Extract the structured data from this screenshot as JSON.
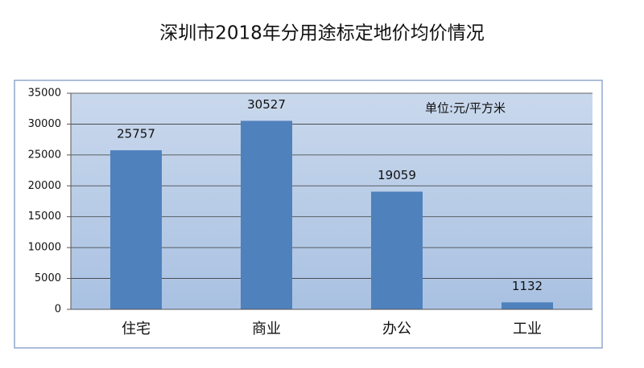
{
  "chart_data": {
    "type": "bar",
    "title": "深圳市2018年分用途标定地价均价情况",
    "annotation": "单位:元/平方米",
    "categories": [
      "住宅",
      "商业",
      "办公",
      "工业"
    ],
    "values": [
      25757,
      30527,
      19059,
      1132
    ],
    "show_value_labels": true,
    "color": "#4f81bd",
    "ylim": [
      0,
      35000
    ],
    "yticks": [
      0,
      5000,
      10000,
      15000,
      20000,
      25000,
      30000,
      35000
    ],
    "grid": true
  }
}
